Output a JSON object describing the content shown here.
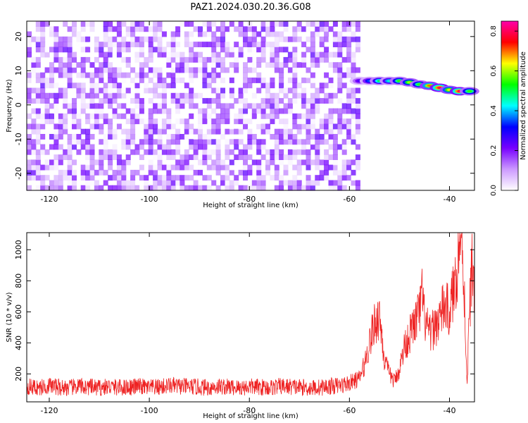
{
  "title": "PAZ1.2024.030.20.36.G08",
  "chart_data": [
    {
      "type": "heatmap",
      "xlabel": "Height of straight line (km)",
      "ylabel": "Frequency (Hz)",
      "xlim": [
        -124.5,
        -35
      ],
      "ylim": [
        -25,
        24.5
      ],
      "xticks": [
        -120,
        -100,
        -80,
        -60,
        -40
      ],
      "yticks": [
        -20,
        -10,
        0,
        10,
        20
      ],
      "colorbar": {
        "label": "Normalized spectral amplitude",
        "range": [
          0,
          0.85
        ],
        "ticks": [
          0.0,
          0.2,
          0.4,
          0.6,
          0.8
        ],
        "colors": [
          "#ffffff",
          "#cc99ff",
          "#7700ff",
          "#0000ff",
          "#00ffff",
          "#00ff00",
          "#ffff00",
          "#ff0000",
          "#ff00aa"
        ]
      },
      "signal_band": {
        "x": [
          -58,
          -56,
          -54,
          -52,
          -50,
          -48,
          -46,
          -44,
          -42,
          -40,
          -38,
          -36
        ],
        "frequency_hz": [
          7.0,
          7.0,
          7.0,
          7.0,
          7.0,
          6.6,
          6.0,
          5.6,
          5.0,
          4.4,
          4.0,
          4.0
        ],
        "amplitude": [
          0.25,
          0.35,
          0.5,
          0.45,
          0.55,
          0.6,
          0.55,
          0.7,
          0.8,
          0.65,
          0.8,
          0.55
        ]
      },
      "noise_region": {
        "x_range": [
          -124.5,
          -58
        ],
        "frequency_range": [
          -25,
          24.5
        ],
        "amplitude_max": 0.15
      }
    },
    {
      "type": "line",
      "xlabel": "Height of straight line (km)",
      "ylabel": "SNR (10 * v/v)",
      "xlim": [
        -124.5,
        -35
      ],
      "ylim": [
        20,
        1110
      ],
      "xticks": [
        -120,
        -100,
        -80,
        -60,
        -40
      ],
      "yticks": [
        200,
        400,
        600,
        800,
        1000
      ],
      "color": "#ee2222",
      "series": [
        {
          "x": [
            -124.5,
            -122,
            -120,
            -118,
            -116,
            -114,
            -112,
            -110,
            -108,
            -106,
            -104,
            -102,
            -100,
            -98,
            -96,
            -94,
            -92,
            -90,
            -88,
            -86,
            -84,
            -82,
            -80,
            -78,
            -76,
            -74,
            -72,
            -70,
            -68,
            -66,
            -64,
            -62,
            -60,
            -58,
            -57,
            -56,
            -55,
            -54,
            -53.5,
            -53,
            -52,
            -51,
            -50,
            -49,
            -48,
            -47,
            -46,
            -45.5,
            -45,
            -44,
            -43,
            -42,
            -41,
            -40,
            -39,
            -38.5,
            -38,
            -37.5,
            -37,
            -36.5,
            -36,
            -35.5,
            -35
          ],
          "y": [
            120,
            110,
            125,
            115,
            110,
            120,
            115,
            110,
            118,
            112,
            115,
            120,
            110,
            115,
            125,
            120,
            118,
            115,
            112,
            120,
            115,
            110,
            118,
            115,
            112,
            120,
            118,
            115,
            110,
            112,
            120,
            125,
            140,
            170,
            260,
            400,
            520,
            580,
            450,
            280,
            200,
            150,
            230,
            380,
            450,
            520,
            600,
            700,
            560,
            450,
            500,
            560,
            640,
            600,
            760,
            900,
            1050,
            1100,
            700,
            120,
            600,
            900,
            780
          ]
        }
      ]
    }
  ]
}
